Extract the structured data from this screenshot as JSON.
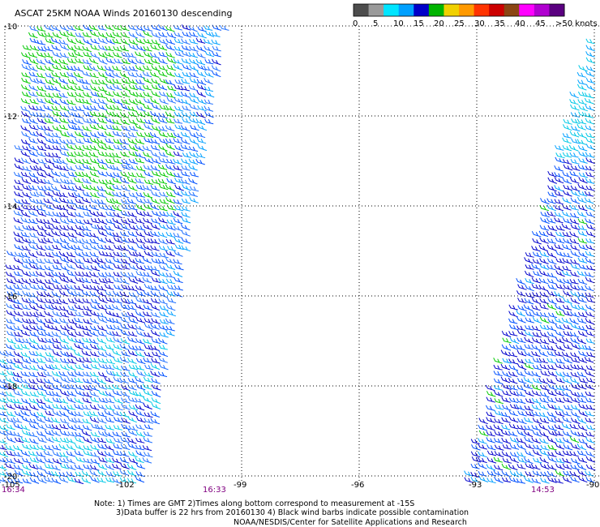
{
  "title": "ASCAT 25KM NOAA Winds 20160130 descending",
  "colorbar": {
    "labels": [
      "0",
      "5",
      "10",
      "15",
      "20",
      "25",
      "30",
      "35",
      "40",
      "45",
      ">50 knots"
    ],
    "colors": [
      "#4d4d4d",
      "#9a9a9a",
      "#00e5ff",
      "#00a0ff",
      "#0000c8",
      "#00b400",
      "#f0d000",
      "#ff9900",
      "#ff3300",
      "#cc0000",
      "#8b4513",
      "#ff00ff",
      "#b000d0",
      "#5a0080"
    ]
  },
  "map": {
    "lat_labels": [
      "-10",
      "-12",
      "-14",
      "-16",
      "-18",
      "-20"
    ],
    "lon_labels": [
      "-105",
      "-102",
      "-99",
      "-96",
      "-93",
      "-90"
    ],
    "pass_times": [
      "16:34",
      "16:33",
      "14:53"
    ]
  },
  "notes": {
    "line1": "Note: 1) Times are GMT 2)Times along bottom correspond to measurement at -15S",
    "line2": "3)Data buffer is 22 hrs from 20160130 4) Black wind barbs indicate possible contamination",
    "line3": "NOAA/NESDIS/Center for Satellite Applications and Research"
  }
}
